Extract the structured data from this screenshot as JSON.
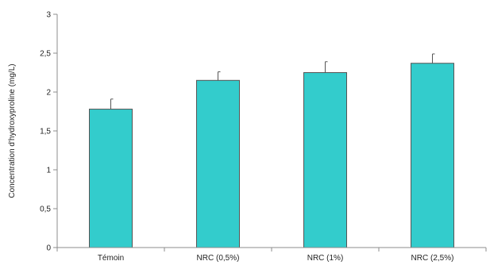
{
  "chart_data": {
    "type": "bar",
    "title": "",
    "xlabel": "",
    "ylabel": "Concentration d'hydroxyproline (mg/L)",
    "categories": [
      "Témoin",
      "NRC (0,5%)",
      "NRC (1%)",
      "NRC (2,5%)"
    ],
    "values": [
      1.78,
      2.15,
      2.25,
      2.37
    ],
    "error_bars": [
      0.13,
      0.11,
      0.14,
      0.12
    ],
    "ylim": [
      0,
      3
    ],
    "yticks": [
      0,
      0.5,
      1,
      1.5,
      2,
      2.5,
      3
    ],
    "ytick_labels": [
      "0",
      "0,5",
      "1",
      "1,5",
      "2",
      "2,5",
      "3"
    ],
    "grid": false,
    "legend": "none",
    "bar_color": "#33CCCC",
    "bar_edge_color": "#555555"
  }
}
